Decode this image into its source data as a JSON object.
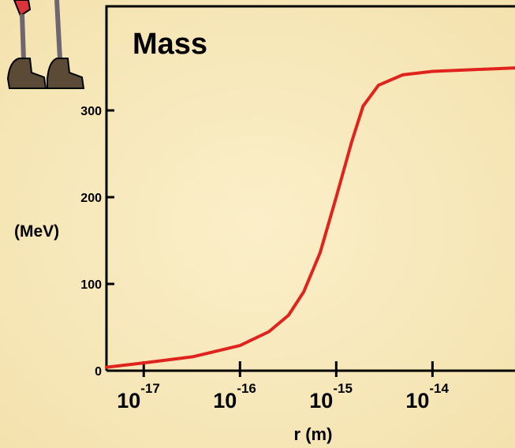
{
  "chart_data": {
    "type": "line",
    "title": "Mass",
    "y_label": "(MeV)",
    "x_label": "r (m)",
    "xscale": "log",
    "x": [
      4.1e-18,
      1e-17,
      3.2e-17,
      1e-16,
      2e-16,
      3.2e-16,
      4.6e-16,
      6.8e-16,
      1e-15,
      1.45e-15,
      1.9e-15,
      2.75e-15,
      4.9e-15,
      1e-14,
      2.7e-14,
      7.2e-14
    ],
    "series": [
      {
        "name": "Mass",
        "color": "#e0231c",
        "values": [
          4,
          9,
          16,
          29,
          45,
          64,
          91,
          136,
          200,
          264,
          305,
          329,
          341,
          345,
          347,
          349
        ]
      }
    ],
    "xlim": [
      4.1e-18,
      7.2e-14
    ],
    "ylim": [
      0,
      420
    ],
    "xticks": [
      {
        "value": 1e-17,
        "label": "10",
        "exponent": "-17"
      },
      {
        "value": 1e-16,
        "label": "10",
        "exponent": "-16"
      },
      {
        "value": 1e-15,
        "label": "10",
        "exponent": "-15"
      },
      {
        "value": 1e-14,
        "label": "10",
        "exponent": "-14"
      }
    ],
    "yticks": [
      0,
      100,
      200,
      300
    ]
  }
}
